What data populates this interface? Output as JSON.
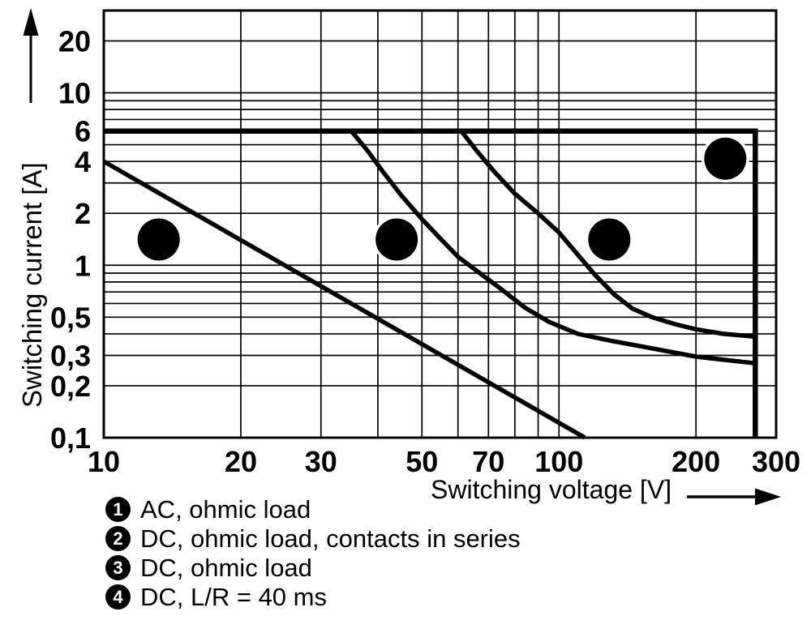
{
  "figure": {
    "background": "#ffffff",
    "ink": "#000000"
  },
  "y_axis": {
    "title": "Switching current [A]",
    "arrow_icon": "up-arrow",
    "ticks": [
      {
        "v": 20,
        "label": "20"
      },
      {
        "v": 10,
        "label": "10"
      },
      {
        "v": 6,
        "label": "6"
      },
      {
        "v": 4,
        "label": "4"
      },
      {
        "v": 2,
        "label": "2"
      },
      {
        "v": 1,
        "label": "1"
      },
      {
        "v": 0.5,
        "label": "0,5"
      },
      {
        "v": 0.3,
        "label": "0,3"
      },
      {
        "v": 0.2,
        "label": "0,2"
      },
      {
        "v": 0.1,
        "label": "0,1"
      }
    ]
  },
  "x_axis": {
    "title": "Switching voltage [V]",
    "arrow_icon": "right-arrow",
    "ticks": [
      {
        "v": 10,
        "label": "10"
      },
      {
        "v": 20,
        "label": "20"
      },
      {
        "v": 30,
        "label": "30"
      },
      {
        "v": 50,
        "label": "50"
      },
      {
        "v": 70,
        "label": "70"
      },
      {
        "v": 100,
        "label": "100"
      },
      {
        "v": 200,
        "label": "200"
      },
      {
        "v": 300,
        "label": "300"
      }
    ]
  },
  "chart_data": {
    "type": "line",
    "x_scale": "log",
    "y_scale": "log",
    "xlim": [
      10,
      300
    ],
    "ylim": [
      0.1,
      30
    ],
    "xlabel": "Switching voltage [V]",
    "ylabel": "Switching current [A]",
    "grid": {
      "x": [
        20,
        30,
        40,
        50,
        60,
        70,
        80,
        90,
        100,
        200
      ],
      "y": [
        0.2,
        0.3,
        0.4,
        0.5,
        0.6,
        0.7,
        0.8,
        0.9,
        1,
        2,
        3,
        4,
        5,
        6,
        7,
        8,
        9,
        10,
        20
      ]
    },
    "series": [
      {
        "name": "1",
        "label": "AC, ohmic load",
        "points": [
          [
            10,
            6
          ],
          [
            270,
            6
          ],
          [
            270,
            0.1
          ]
        ]
      },
      {
        "name": "2",
        "label": "DC, ohmic load, contacts in series",
        "points": [
          [
            61,
            6
          ],
          [
            66,
            4.6
          ],
          [
            72,
            3.5
          ],
          [
            80,
            2.6
          ],
          [
            90,
            2.0
          ],
          [
            100,
            1.55
          ],
          [
            110,
            1.15
          ],
          [
            120,
            0.88
          ],
          [
            132,
            0.68
          ],
          [
            145,
            0.56
          ],
          [
            160,
            0.5
          ],
          [
            180,
            0.455
          ],
          [
            200,
            0.425
          ],
          [
            230,
            0.4
          ],
          [
            270,
            0.385
          ]
        ]
      },
      {
        "name": "3",
        "label": "DC, ohmic load",
        "points": [
          [
            35,
            6
          ],
          [
            38,
            4.6
          ],
          [
            41,
            3.5
          ],
          [
            45,
            2.55
          ],
          [
            50,
            1.85
          ],
          [
            55,
            1.42
          ],
          [
            60,
            1.12
          ],
          [
            67,
            0.9
          ],
          [
            75,
            0.72
          ],
          [
            84,
            0.57
          ],
          [
            95,
            0.47
          ],
          [
            110,
            0.4
          ],
          [
            130,
            0.365
          ],
          [
            155,
            0.335
          ],
          [
            200,
            0.295
          ],
          [
            270,
            0.27
          ]
        ]
      },
      {
        "name": "4",
        "label": "DC, L/R = 40 ms",
        "points": [
          [
            10,
            4
          ],
          [
            114,
            0.1
          ]
        ]
      }
    ],
    "markers": [
      {
        "label": "1",
        "x": 232,
        "y": 4.15
      },
      {
        "label": "2",
        "x": 129,
        "y": 1.41
      },
      {
        "label": "3",
        "x": 44,
        "y": 1.41
      },
      {
        "label": "4",
        "x": 13.2,
        "y": 1.41
      }
    ]
  },
  "legend": {
    "items": [
      {
        "badge": "1",
        "text": "AC, ohmic load"
      },
      {
        "badge": "2",
        "text": "DC, ohmic load, contacts in series"
      },
      {
        "badge": "3",
        "text": "DC, ohmic load"
      },
      {
        "badge": "4",
        "text": "DC, L/R = 40 ms"
      }
    ]
  }
}
